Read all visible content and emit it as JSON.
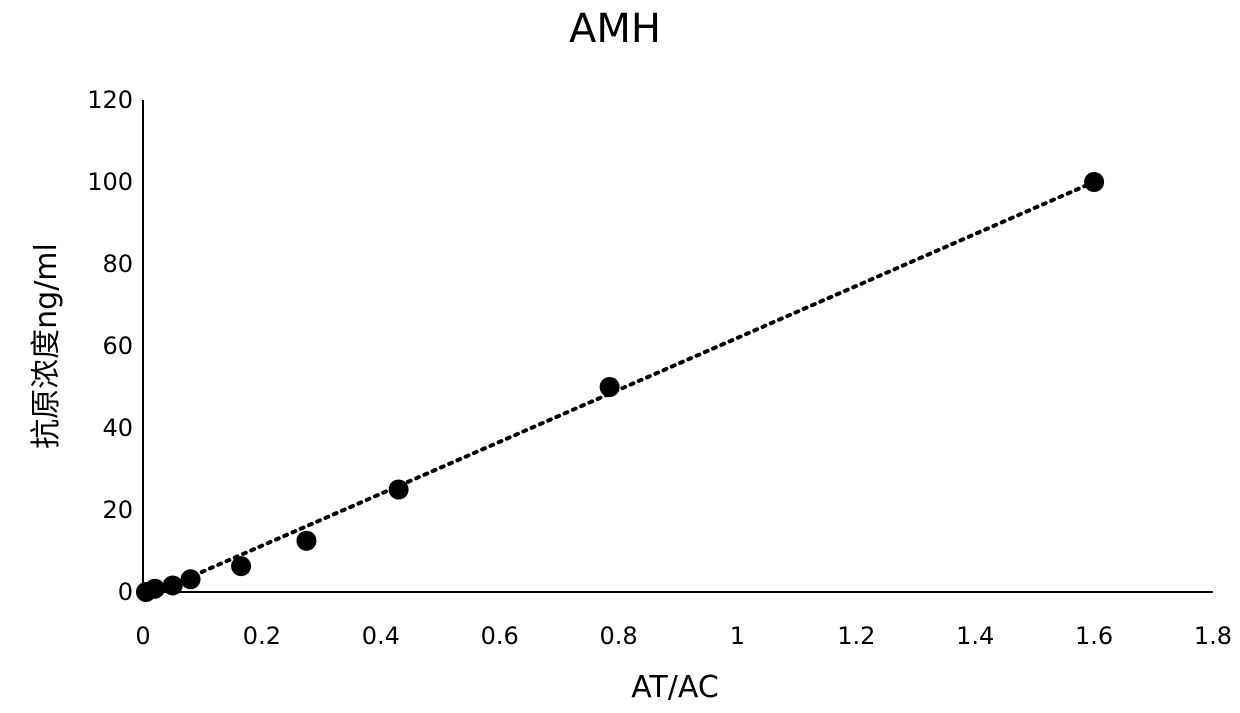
{
  "chart_data": {
    "type": "scatter",
    "title": "AMH",
    "xlabel": "AT/AC",
    "ylabel": "抗原浓度ng/ml",
    "xlim": [
      0,
      1.8
    ],
    "ylim": [
      0,
      120
    ],
    "xticks": [
      "0",
      "0.2",
      "0.4",
      "0.6",
      "0.8",
      "1",
      "1.2",
      "1.4",
      "1.6",
      "1.8"
    ],
    "yticks": [
      "0",
      "20",
      "40",
      "60",
      "80",
      "100",
      "120"
    ],
    "grid": false,
    "legend": "none",
    "series": [
      {
        "points": [
          {
            "x": 0.005,
            "y": 0
          },
          {
            "x": 0.02,
            "y": 0.8
          },
          {
            "x": 0.05,
            "y": 1.6
          },
          {
            "x": 0.08,
            "y": 3.1
          },
          {
            "x": 0.165,
            "y": 6.3
          },
          {
            "x": 0.275,
            "y": 12.5
          },
          {
            "x": 0.43,
            "y": 25
          },
          {
            "x": 0.785,
            "y": 50
          },
          {
            "x": 1.6,
            "y": 100
          }
        ],
        "marker_color": "#000000"
      }
    ],
    "trendline": {
      "type": "linear",
      "from": {
        "x": 0.085,
        "y": 4
      },
      "to": {
        "x": 1.6,
        "y": 100
      },
      "style": "dotted",
      "color": "#000000"
    }
  }
}
